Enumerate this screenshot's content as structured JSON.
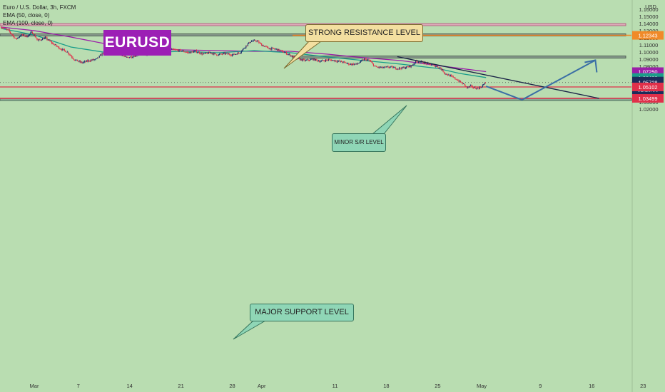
{
  "symbol": {
    "title": "Euro / U.S. Dollar, 3h, FXCM",
    "indicators": [
      "EMA (50, close, 0)",
      "EMA (100, close, 0)"
    ],
    "badge": "EURUSD"
  },
  "annotations": {
    "strong_resistance": "STRONG RESISTANCE LEVEL",
    "minor_sr": "MINOR S/R LEVEL",
    "major_support": "MAJOR SUPPORT LEVEL"
  },
  "colors": {
    "background": "#b9ddb1",
    "bull": "#1f2f6e",
    "bear": "#e0304a",
    "ema50": "#1a9e8a",
    "ema100": "#9b1fa8",
    "resistance_zone": "#e7a3bd",
    "sr_zone": "#7f8f86",
    "support_line": "#e0304a",
    "projection": "#3a6ea5"
  },
  "chart_data": {
    "type": "candlestick",
    "instrument": "EURUSD",
    "timeframe": "3h",
    "currency": "USD",
    "ylim": [
      1.015,
      1.167
    ],
    "y_ticks": [
      "1.16000",
      "1.15000",
      "1.14000",
      "1.13000",
      "1.12000",
      "1.11000",
      "1.10000",
      "1.09000",
      "1.08000",
      "1.07000",
      "1.06000",
      "1.05000",
      "1.04000",
      "1.03000",
      "1.02000"
    ],
    "x_ticks": [
      "Mar",
      "7",
      "14",
      "21",
      "28",
      "Apr",
      "11",
      "18",
      "25",
      "May",
      "9",
      "16",
      "23"
    ],
    "x_tick_days": [
      0,
      6,
      13,
      20,
      27,
      31,
      41,
      48,
      55,
      61,
      69,
      76,
      83
    ],
    "xlim_days": [
      -4.5,
      92
    ],
    "price_path": [
      {
        "d": -4.5,
        "p": 1.135
      },
      {
        "d": -3.5,
        "p": 1.13
      },
      {
        "d": -2.5,
        "p": 1.118
      },
      {
        "d": -1.8,
        "p": 1.124
      },
      {
        "d": -1.0,
        "p": 1.122
      },
      {
        "d": -0.3,
        "p": 1.128
      },
      {
        "d": 0.5,
        "p": 1.116
      },
      {
        "d": 1.5,
        "p": 1.12
      },
      {
        "d": 2.5,
        "p": 1.112
      },
      {
        "d": 3.5,
        "p": 1.105
      },
      {
        "d": 4.5,
        "p": 1.1
      },
      {
        "d": 5.5,
        "p": 1.089
      },
      {
        "d": 6.5,
        "p": 1.085
      },
      {
        "d": 7.5,
        "p": 1.088
      },
      {
        "d": 8.5,
        "p": 1.09
      },
      {
        "d": 9.5,
        "p": 1.1
      },
      {
        "d": 10.3,
        "p": 1.108
      },
      {
        "d": 11.0,
        "p": 1.101
      },
      {
        "d": 11.8,
        "p": 1.097
      },
      {
        "d": 12.5,
        "p": 1.092
      },
      {
        "d": 13.5,
        "p": 1.094
      },
      {
        "d": 14.5,
        "p": 1.098
      },
      {
        "d": 15.5,
        "p": 1.096
      },
      {
        "d": 16.5,
        "p": 1.1
      },
      {
        "d": 17.3,
        "p": 1.11
      },
      {
        "d": 18.0,
        "p": 1.106
      },
      {
        "d": 19.0,
        "p": 1.103
      },
      {
        "d": 20.0,
        "p": 1.102
      },
      {
        "d": 21.0,
        "p": 1.099
      },
      {
        "d": 22.0,
        "p": 1.101
      },
      {
        "d": 23.0,
        "p": 1.097
      },
      {
        "d": 24.0,
        "p": 1.099
      },
      {
        "d": 25.0,
        "p": 1.096
      },
      {
        "d": 26.0,
        "p": 1.098
      },
      {
        "d": 27.0,
        "p": 1.096
      },
      {
        "d": 28.0,
        "p": 1.099
      },
      {
        "d": 28.8,
        "p": 1.108
      },
      {
        "d": 29.5,
        "p": 1.115
      },
      {
        "d": 30.3,
        "p": 1.116
      },
      {
        "d": 31.0,
        "p": 1.11
      },
      {
        "d": 32.0,
        "p": 1.105
      },
      {
        "d": 33.0,
        "p": 1.104
      },
      {
        "d": 34.0,
        "p": 1.1
      },
      {
        "d": 35.0,
        "p": 1.095
      },
      {
        "d": 36.0,
        "p": 1.09
      },
      {
        "d": 37.0,
        "p": 1.088
      },
      {
        "d": 38.0,
        "p": 1.09
      },
      {
        "d": 39.0,
        "p": 1.087
      },
      {
        "d": 40.0,
        "p": 1.089
      },
      {
        "d": 41.0,
        "p": 1.088
      },
      {
        "d": 42.0,
        "p": 1.086
      },
      {
        "d": 43.0,
        "p": 1.083
      },
      {
        "d": 44.0,
        "p": 1.083
      },
      {
        "d": 45.0,
        "p": 1.09
      },
      {
        "d": 45.7,
        "p": 1.088
      },
      {
        "d": 46.5,
        "p": 1.079
      },
      {
        "d": 47.5,
        "p": 1.078
      },
      {
        "d": 48.5,
        "p": 1.079
      },
      {
        "d": 49.5,
        "p": 1.077
      },
      {
        "d": 50.5,
        "p": 1.078
      },
      {
        "d": 51.5,
        "p": 1.081
      },
      {
        "d": 52.0,
        "p": 1.087
      },
      {
        "d": 52.8,
        "p": 1.086
      },
      {
        "d": 53.5,
        "p": 1.084
      },
      {
        "d": 54.5,
        "p": 1.081
      },
      {
        "d": 55.3,
        "p": 1.078
      },
      {
        "d": 56.0,
        "p": 1.07
      },
      {
        "d": 56.8,
        "p": 1.066
      },
      {
        "d": 57.5,
        "p": 1.062
      },
      {
        "d": 58.5,
        "p": 1.055
      },
      {
        "d": 59.0,
        "p": 1.05
      },
      {
        "d": 59.5,
        "p": 1.052
      },
      {
        "d": 60.2,
        "p": 1.049
      },
      {
        "d": 60.8,
        "p": 1.05
      },
      {
        "d": 61.3,
        "p": 1.055
      },
      {
        "d": 61.6,
        "p": 1.0573
      }
    ],
    "ema50": [
      {
        "d": -4.5,
        "p": 1.133
      },
      {
        "d": 0,
        "p": 1.124
      },
      {
        "d": 5,
        "p": 1.107
      },
      {
        "d": 10,
        "p": 1.099
      },
      {
        "d": 15,
        "p": 1.099
      },
      {
        "d": 20,
        "p": 1.101
      },
      {
        "d": 25,
        "p": 1.099
      },
      {
        "d": 30,
        "p": 1.102
      },
      {
        "d": 35,
        "p": 1.099
      },
      {
        "d": 40,
        "p": 1.093
      },
      {
        "d": 45,
        "p": 1.088
      },
      {
        "d": 50,
        "p": 1.083
      },
      {
        "d": 55,
        "p": 1.077
      },
      {
        "d": 58,
        "p": 1.07
      },
      {
        "d": 61.6,
        "p": 1.0642
      }
    ],
    "ema100": [
      {
        "d": -4.5,
        "p": 1.135
      },
      {
        "d": 0,
        "p": 1.13
      },
      {
        "d": 5,
        "p": 1.121
      },
      {
        "d": 10,
        "p": 1.111
      },
      {
        "d": 15,
        "p": 1.104
      },
      {
        "d": 20,
        "p": 1.103
      },
      {
        "d": 25,
        "p": 1.102
      },
      {
        "d": 30,
        "p": 1.101
      },
      {
        "d": 35,
        "p": 1.101
      },
      {
        "d": 40,
        "p": 1.097
      },
      {
        "d": 45,
        "p": 1.092
      },
      {
        "d": 50,
        "p": 1.088
      },
      {
        "d": 55,
        "p": 1.081
      },
      {
        "d": 61.6,
        "p": 1.0725
      }
    ],
    "zones": [
      {
        "name": "strong-resistance",
        "from": 1.1385,
        "to": 1.14
      },
      {
        "name": "minor-sr",
        "from": 1.1235,
        "to": 1.1255
      },
      {
        "name": "mid-sr",
        "from": 1.0923,
        "to": 1.0945
      },
      {
        "name": "major-support",
        "from": 1.0325,
        "to": 1.0349
      }
    ],
    "levels": [
      {
        "name": "minor-sr-line",
        "price": 1.1234,
        "label": "1.12343"
      },
      {
        "name": "current-support",
        "price": 1.051,
        "label": "1.05102"
      },
      {
        "name": "major-support-line",
        "price": 1.035,
        "label": "1.03499"
      }
    ],
    "trendline": [
      {
        "d": 49.5,
        "p": 1.0935
      },
      {
        "d": 77,
        "p": 1.035
      }
    ],
    "projection": [
      {
        "d": 61.6,
        "p": 1.052
      },
      {
        "d": 66.5,
        "p": 1.033
      },
      {
        "d": 76.5,
        "p": 1.0885
      }
    ],
    "price_labels": [
      {
        "name": "ema100",
        "text": "1.07250",
        "price": 1.0725,
        "color": "#9b1fa8"
      },
      {
        "name": "ema50",
        "text": "1.06422",
        "price": 1.06422,
        "color": "#1a9e8a"
      },
      {
        "name": "current",
        "text": "1.05728",
        "price": 1.05728,
        "color": "#1c2b5a"
      },
      {
        "name": "support",
        "text": "1.05102",
        "price": 1.05102,
        "color": "#e0304a"
      },
      {
        "name": "major-support",
        "text": "1.03499",
        "price": 1.03499,
        "color": "#e0304a"
      },
      {
        "name": "minor",
        "text": "1.12343",
        "price": 1.12343,
        "color": "#f08a28"
      }
    ],
    "countdown": "01:28:56"
  }
}
